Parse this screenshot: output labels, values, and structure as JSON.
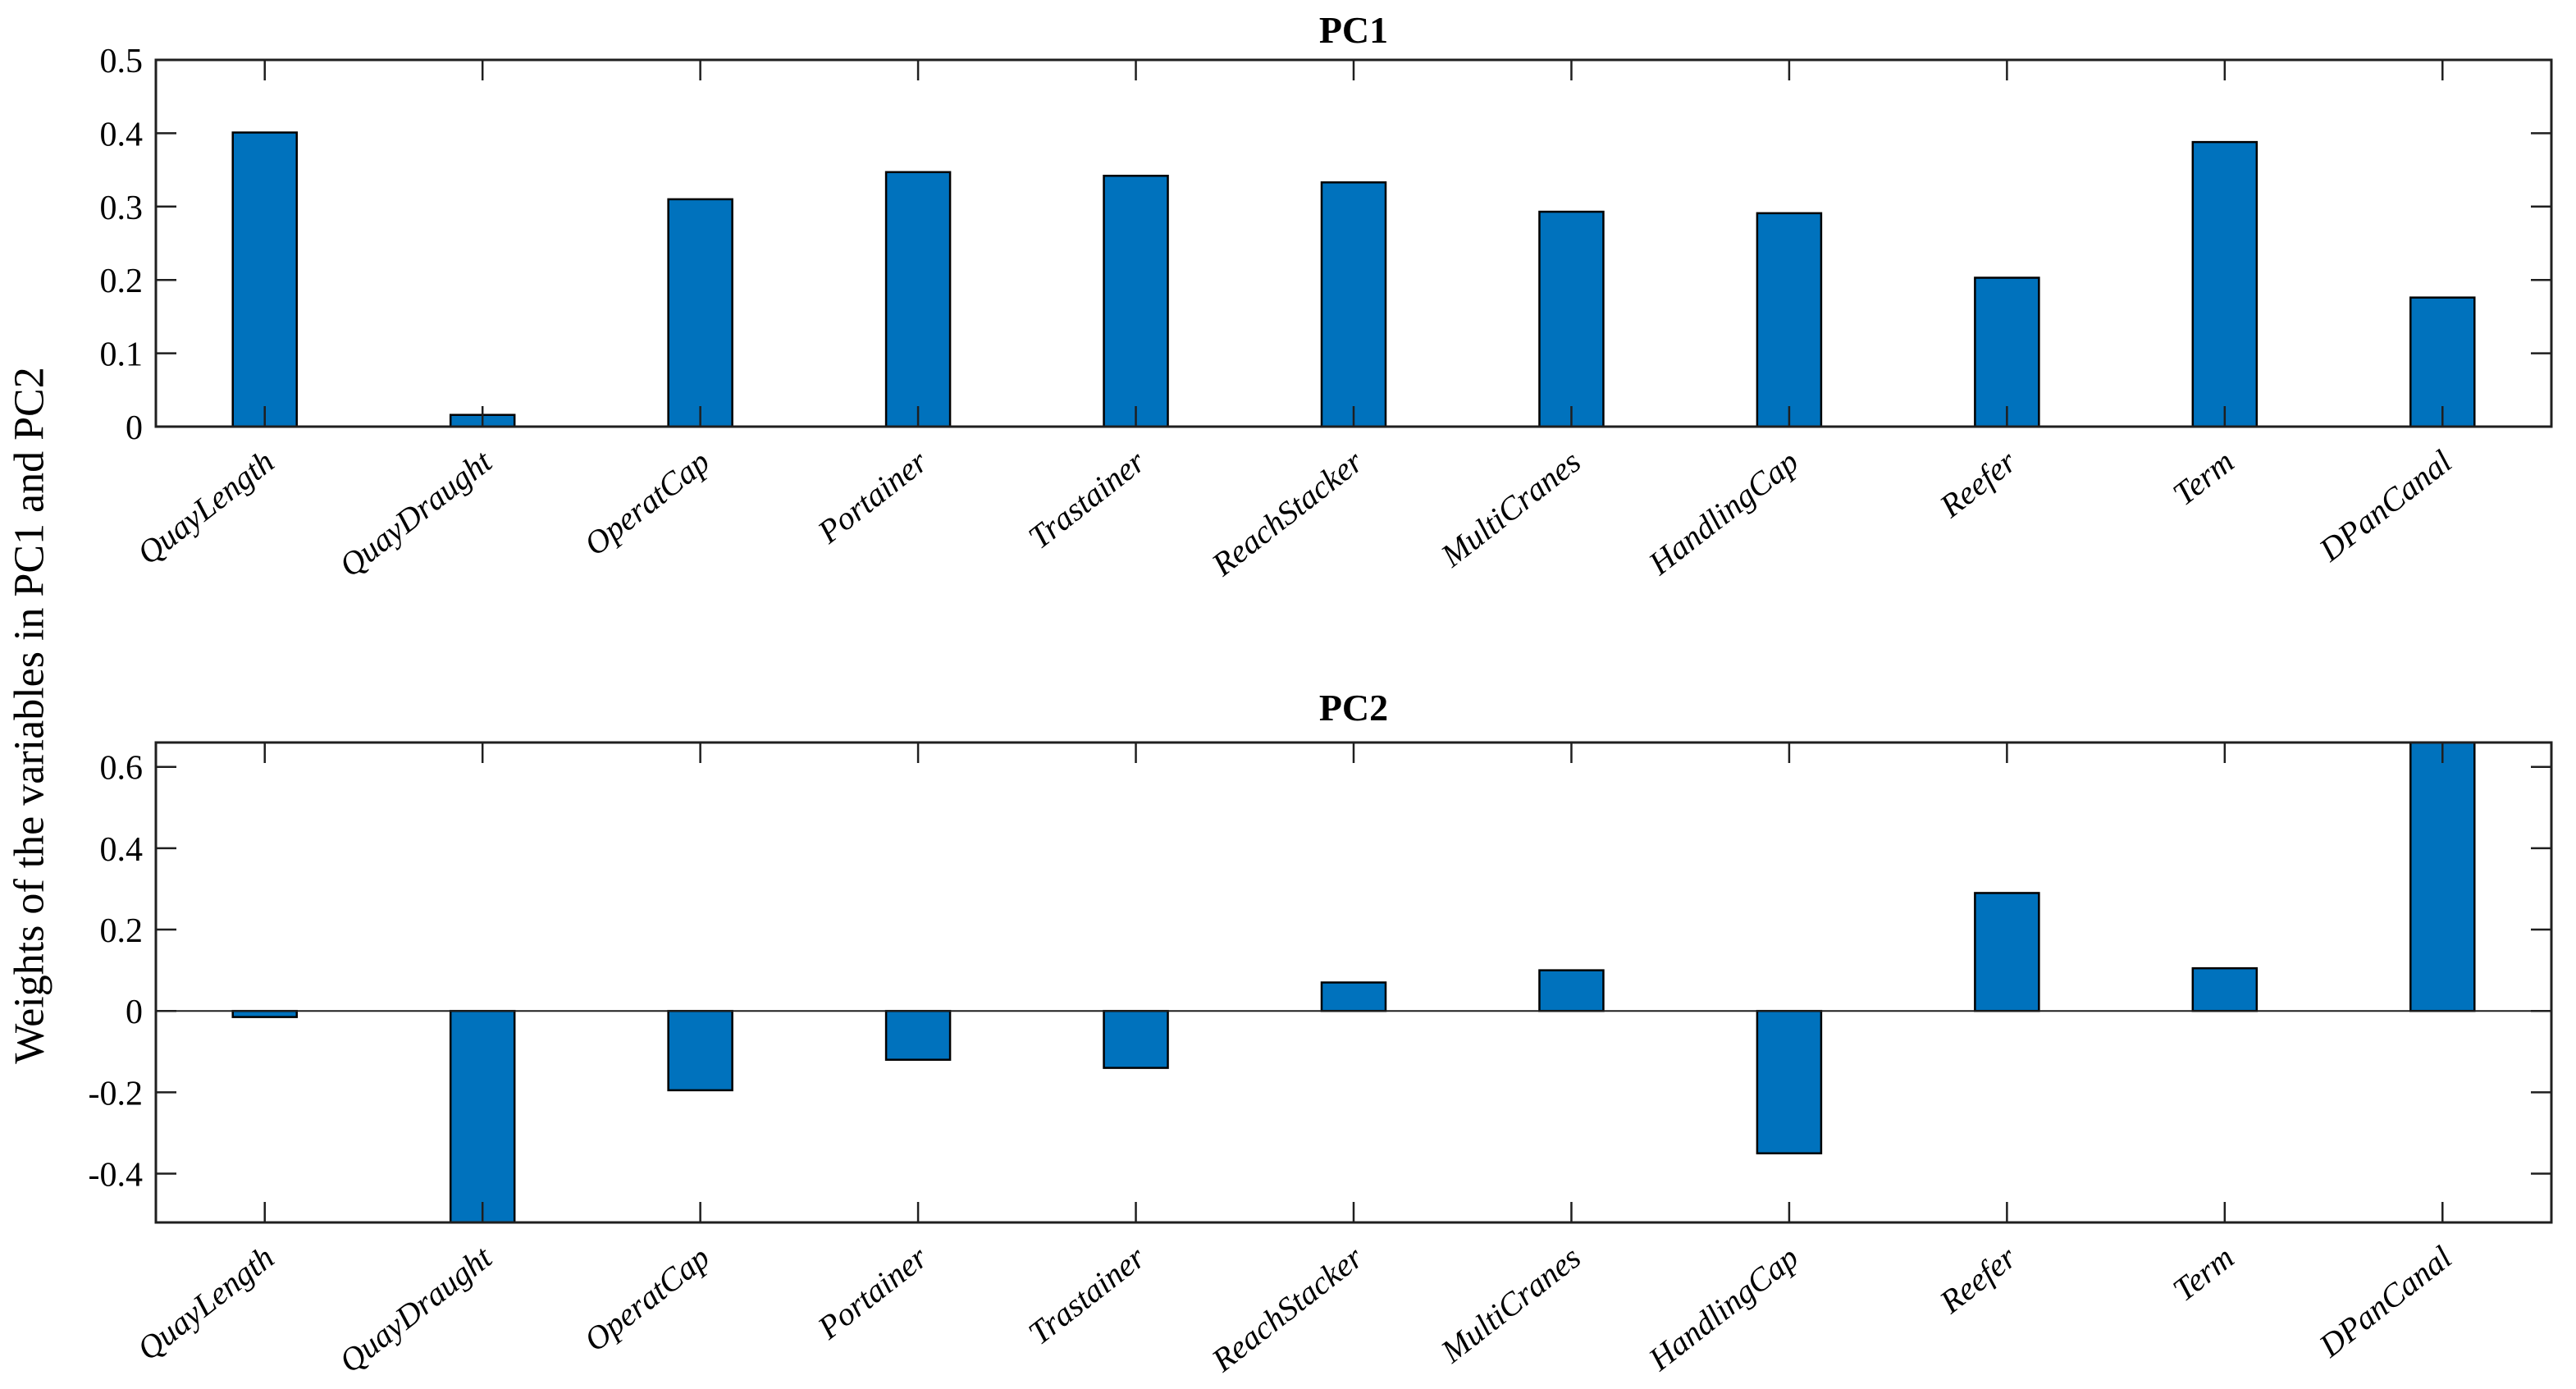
{
  "figure": {
    "ylabel": "Weights of the variables in PC1 and PC2",
    "background_color": "#ffffff",
    "bar_color": "#0072BD",
    "bar_edge_color": "#000000",
    "axis_color": "#1f1f1f",
    "text_color": "#000000",
    "grid": false,
    "legend": "none"
  },
  "chart_data": [
    {
      "type": "bar",
      "title": "PC1",
      "xlabel": "",
      "ylabel": "Weights of the variables in PC1 and PC2",
      "categories": [
        "QuayLength",
        "QuayDraught",
        "OperatCap",
        "Portainer",
        "Trastainer",
        "ReachStacker",
        "MultiCranes",
        "HandlingCap",
        "Reefer",
        "Term",
        "DPanCanal"
      ],
      "values": [
        0.401,
        0.016,
        0.31,
        0.347,
        0.342,
        0.333,
        0.293,
        0.291,
        0.203,
        0.388,
        0.176
      ],
      "ylim": [
        0,
        0.5
      ],
      "yticks": [
        0,
        0.1,
        0.2,
        0.3,
        0.4,
        0.5
      ],
      "ytick_labels": [
        "0",
        "0.1",
        "0.2",
        "0.3",
        "0.4",
        "0.5"
      ],
      "grid": false,
      "legend_position": "none"
    },
    {
      "type": "bar",
      "title": "PC2",
      "xlabel": "",
      "ylabel": "Weights of the variables in PC1 and PC2",
      "categories": [
        "QuayLength",
        "QuayDraught",
        "OperatCap",
        "Portainer",
        "Trastainer",
        "ReachStacker",
        "MultiCranes",
        "HandlingCap",
        "Reefer",
        "Term",
        "DPanCanal"
      ],
      "values": [
        -0.015,
        -0.52,
        -0.195,
        -0.12,
        -0.14,
        0.07,
        0.1,
        -0.35,
        0.29,
        0.105,
        0.66
      ],
      "ylim": [
        -0.52,
        0.66
      ],
      "yticks": [
        -0.4,
        -0.2,
        0,
        0.2,
        0.4,
        0.6
      ],
      "ytick_labels": [
        "-0.4",
        "-0.2",
        "0",
        "0.2",
        "0.4",
        "0.6"
      ],
      "grid": false,
      "legend_position": "none"
    }
  ]
}
